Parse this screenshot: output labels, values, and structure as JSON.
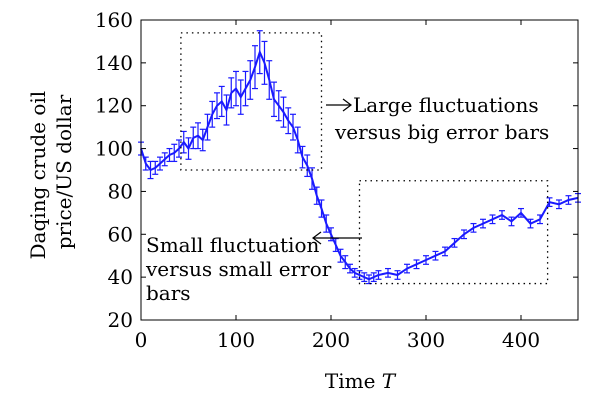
{
  "chart_data": {
    "type": "line",
    "title": "",
    "xlabel": "Time",
    "xlabel_var": "T",
    "ylabel": "Daqing crude oil price/US dollar",
    "ylabel_lines": [
      "Daqing crude oil",
      "price/US dollar"
    ],
    "xlim": [
      0,
      460
    ],
    "ylim": [
      20,
      160
    ],
    "xticks": [
      0,
      100,
      200,
      300,
      400
    ],
    "yticks": [
      20,
      40,
      60,
      80,
      100,
      120,
      140,
      160
    ],
    "grid": false,
    "series_color": "#1a1aff",
    "series": [
      {
        "name": "",
        "error_bars": true,
        "x": [
          0,
          5,
          10,
          15,
          20,
          25,
          30,
          35,
          40,
          45,
          50,
          55,
          60,
          65,
          70,
          75,
          80,
          85,
          90,
          95,
          100,
          105,
          110,
          115,
          120,
          125,
          130,
          135,
          140,
          145,
          150,
          155,
          160,
          165,
          170,
          175,
          180,
          185,
          190,
          195,
          200,
          205,
          210,
          215,
          220,
          225,
          230,
          235,
          240,
          245,
          250,
          260,
          270,
          280,
          290,
          300,
          310,
          320,
          330,
          340,
          350,
          360,
          370,
          380,
          390,
          400,
          410,
          420,
          430,
          440,
          450,
          460
        ],
        "y": [
          100,
          93,
          90,
          91,
          93,
          95,
          97,
          98,
          100,
          103,
          100,
          105,
          106,
          104,
          110,
          116,
          120,
          122,
          118,
          126,
          128,
          124,
          128,
          132,
          138,
          145,
          140,
          132,
          123,
          120,
          117,
          113,
          110,
          104,
          96,
          92,
          86,
          78,
          72,
          65,
          60,
          55,
          50,
          47,
          44,
          42,
          41,
          40,
          39,
          40,
          41,
          42,
          41,
          44,
          46,
          48,
          50,
          52,
          56,
          60,
          63,
          65,
          67,
          69,
          66,
          70,
          65,
          67,
          75,
          74,
          76,
          77
        ],
        "err": [
          3,
          3,
          4,
          3,
          3,
          3,
          3,
          4,
          4,
          5,
          5,
          5,
          6,
          5,
          6,
          6,
          6,
          7,
          7,
          7,
          8,
          8,
          8,
          9,
          10,
          10,
          10,
          9,
          8,
          7,
          7,
          6,
          6,
          6,
          5,
          5,
          5,
          4,
          4,
          4,
          3,
          3,
          3,
          3,
          2,
          2,
          2,
          2,
          2,
          2,
          2,
          2,
          2,
          2,
          2,
          2,
          2,
          2,
          2,
          2,
          2,
          2,
          2,
          2,
          2,
          2,
          2,
          2,
          2,
          2,
          2,
          2
        ]
      }
    ],
    "annotations": [
      {
        "id": "large",
        "lines": [
          "Large fluctuations",
          "versus big error bars"
        ],
        "box": {
          "x0": 42,
          "x1": 190,
          "y0": 90,
          "y1": 154
        },
        "arrow": "right"
      },
      {
        "id": "small",
        "lines": [
          "Small fluctuation",
          "versus small error",
          "bars"
        ],
        "box": {
          "x0": 230,
          "x1": 428,
          "y0": 37,
          "y1": 85
        },
        "arrow": "left"
      }
    ]
  }
}
